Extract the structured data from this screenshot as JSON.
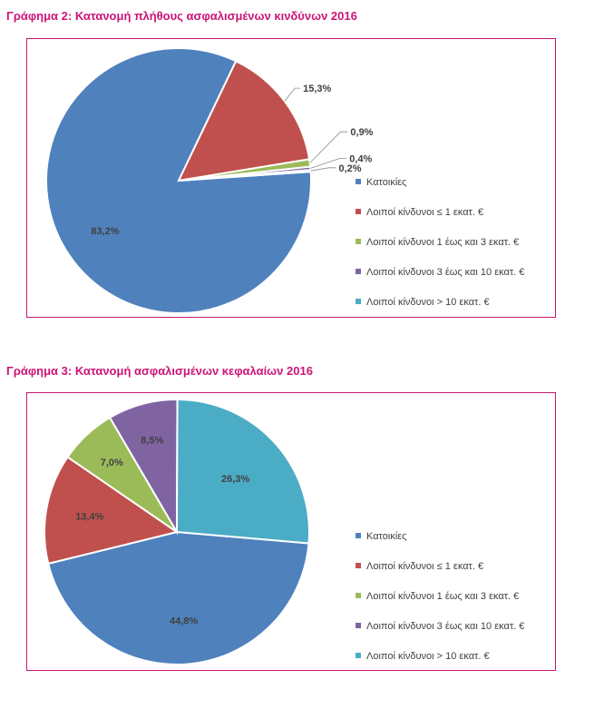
{
  "colors": {
    "title": "#cc1477",
    "border": "#c8196e",
    "series": [
      "#4f81bd",
      "#c0504d",
      "#9bbb59",
      "#8064a2",
      "#4bacc6"
    ]
  },
  "chart_data": [
    {
      "type": "pie",
      "title": "Γράφημα 2: Κατανομή πλήθους ασφαλισμένων κινδύνων 2016",
      "categories": [
        "Κατοικίες",
        "Λοιποί κίνδυνοι ≤ 1 εκατ. €",
        "Λοιποί κίνδυνοι 1 έως και 3 εκατ. €",
        "Λοιποί κίνδυνοι 3 έως και 10 εκατ. €",
        "Λοιποί κίνδυνοι > 10 εκατ. €"
      ],
      "values": [
        83.2,
        15.3,
        0.9,
        0.4,
        0.2
      ],
      "labels": [
        "83,2%",
        "15,3%",
        "0,9%",
        "0,4%",
        "0,2%"
      ],
      "legend_position": "right"
    },
    {
      "type": "pie",
      "title": "Γράφημα 3: Κατανομή ασφαλισμένων κεφαλαίων 2016",
      "categories": [
        "Κατοικίες",
        "Λοιποί κίνδυνοι ≤ 1 εκατ. €",
        "Λοιποί κίνδυνοι 1 έως και 3 εκατ. €",
        "Λοιποί κίνδυνοι 3 έως και 10 εκατ. €",
        "Λοιποί κίνδυνοι > 10 εκατ. €"
      ],
      "values": [
        44.8,
        13.4,
        7.0,
        8.5,
        26.3
      ],
      "labels": [
        "44,8%",
        "13,4%",
        "7,0%",
        "8,5%",
        "26,3%"
      ],
      "legend_position": "right"
    }
  ]
}
